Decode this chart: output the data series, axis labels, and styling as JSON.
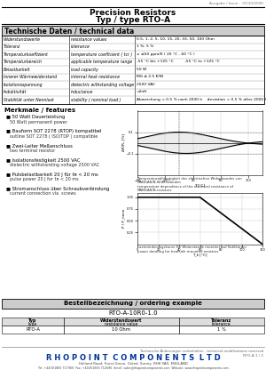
{
  "title": "Precision Resistors\nTyp / type RTO-A",
  "issue": "Ausgabe / Issue :  01/10/2000",
  "section1_title": "Technische Daten / technical data",
  "table_rows": [
    [
      "Widerstandswerte",
      "resistance values",
      "0.5, 1, 2, 5, 10, 15, 20, 33, 50, 100 Ohm"
    ],
    [
      "Toleranz",
      "tolerance",
      "1 %, 5 %"
    ],
    [
      "Temperaturkoeffizient",
      "temperature coefficient ( tcr )",
      "± ≤50 ppm/K ( 20 °C - 60 °C )"
    ],
    [
      "Temperaturbereich",
      "applicable temperature range",
      "-55 °C bis +125 °C         -55 °C to +125 °C"
    ],
    [
      "Belastbarkeit",
      "load capacity",
      "50 W"
    ],
    [
      "Innerer Wärmewiderstand",
      "internal heat resistance",
      "Rθi ≤ 2.5 K/W"
    ],
    [
      "Isolationsspannung",
      "dielectric withstanding voltage",
      "2500 VAC"
    ],
    [
      "Induktivität",
      "inductance",
      "<2nH"
    ],
    [
      "Stabilität unter Nennlast",
      "stability ( nominal load )",
      "Abweichung < 0.5 % nach 2000 h    deviation < 0.5 % after 2000 h"
    ]
  ],
  "section2_title": "Merkmale / features",
  "features": [
    [
      "50 Watt Dauerleistung",
      "50 Watt permanent power"
    ],
    [
      "Bauform SOT 2278 (RTOP) kompatibel",
      "outline SOT 2278 ( ISO/TDP ) compatible"
    ],
    [
      "Zwei-Leiter Meßanschluss",
      "two terminal resistor"
    ],
    [
      "Isolationsfestigkeit 2500 VAC",
      "dielectric withstanding voltage 2500 VAC"
    ],
    [
      "Pulsbelastbarkeit 20 J für tπ < 20 ms",
      "pulse power 20 J for tπ < 20 ms"
    ],
    [
      "Stromanschluss über Schraubverbindung",
      "current connection via  screws"
    ]
  ],
  "graph1_caption": "Temperaturabhängigkeit des elektrischen Widerstandes von\nMANGANIN-Widerständen\ntemperature dependence of the electrical resistance of\nMANGANIN-resistors",
  "graph2_caption": "Lastminderungskurve für Widerstände montiert auf Kühlkörper\npower derating for heatsink mounted resistors",
  "section3_title": "Bestellbezeichnung / ordering example",
  "order_example": "RTO-A-10R0-1.0",
  "order_table_headers": [
    "Typ\ntype",
    "Widerstandswert\nresistance value",
    "Toleranz\ntolerance"
  ],
  "order_table_row": [
    "RTO-A",
    "10 Ohm",
    "1 %"
  ],
  "footer_line1": "Technische Änderungen vorbehalten - technical modifications reserved",
  "footer_company": "RHOPOINT COMPONENTS LTD",
  "footer_page": "RTO-A 1 / 2",
  "footer_addr": "Holland Road, Hurst Green, Oxted, Surrey, RH8 9AX, ENGLAND",
  "footer_contact": "Tel: +44(0)1883 717900  Fax: +44(0)1883 712696  Email: sales@rhopointcomponents.com  Website: www.rhopointcomponents.com",
  "bg_color": "#ffffff",
  "blue_color": "#003399"
}
